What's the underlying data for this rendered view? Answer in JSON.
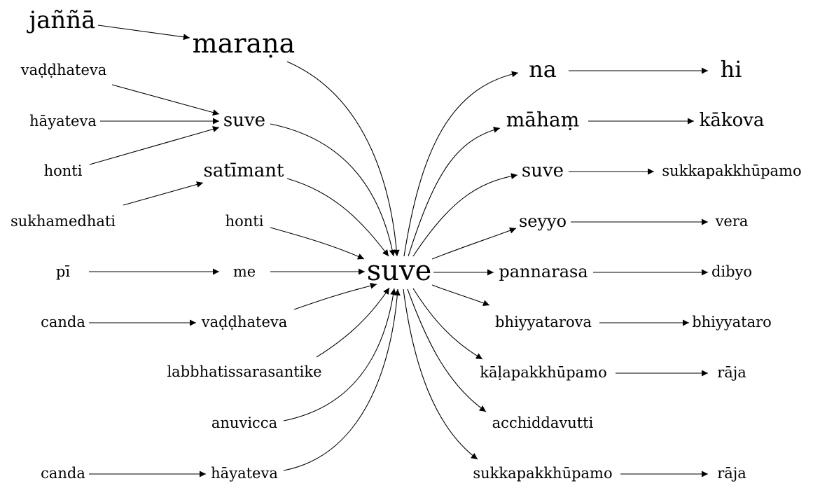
{
  "nodes": {
    "n_jannna": "jaññā",
    "n_marana": "maraṇa",
    "n_vaddhateva1": "vaḍḍhateva",
    "n_hayateva1": "hāyateva",
    "n_honti1": "honti",
    "n_suve_l": "suve",
    "n_satimant": "satīmant",
    "n_sukhamedhati": "sukhamedhati",
    "n_honti2": "honti",
    "n_pi": "pī",
    "n_me": "me",
    "n_canda1": "canda",
    "n_vaddhateva2": "vaḍḍhateva",
    "n_labbhati": "labbhatissarasantike",
    "n_anuvicca": "anuvicca",
    "n_canda2": "canda",
    "n_hayateva2": "hāyateva",
    "n_suve_c": "suve",
    "n_na": "na",
    "n_hi": "hi",
    "n_maham": "māhaṃ",
    "n_kakova": "kākova",
    "n_suve_r": "suve",
    "n_sukka1": "sukkapakkhūpamo",
    "n_seyyo": "seyyo",
    "n_vera": "vera",
    "n_pannarasa": "pannarasa",
    "n_dibyo": "dibyo",
    "n_bhiyyatarova": "bhiyyatarova",
    "n_bhiyyataro": "bhiyyataro",
    "n_kala": "kāḷapakkhūpamo",
    "n_raja1": "rāja",
    "n_acchidda": "acchiddavutti",
    "n_sukka2": "sukkapakkhūpamo",
    "n_raja2": "rāja"
  }
}
